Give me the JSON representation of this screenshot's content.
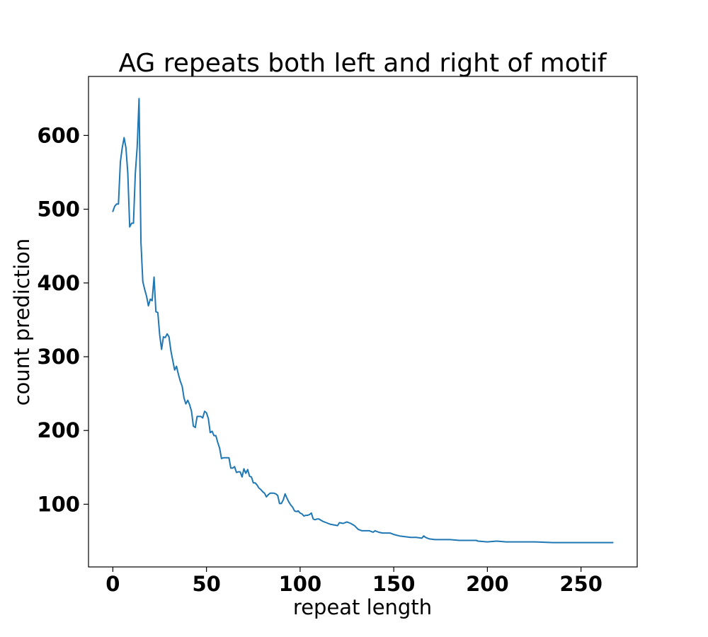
{
  "chart_data": {
    "type": "line",
    "title": "AG repeats both left and right of motif",
    "xlabel": "repeat length",
    "ylabel": "count prediction",
    "xlim": [
      -13,
      280
    ],
    "ylim": [
      15,
      680
    ],
    "x_ticks": [
      0,
      50,
      100,
      150,
      200,
      250
    ],
    "x_tick_labels": [
      "0",
      "50",
      "100",
      "150",
      "200",
      "250"
    ],
    "y_ticks": [
      100,
      200,
      300,
      400,
      500,
      600
    ],
    "y_tick_labels": [
      "100",
      "200",
      "300",
      "400",
      "500",
      "600"
    ],
    "grid": false,
    "series": [
      {
        "color": "#1f77b4",
        "points": [
          [
            0,
            497
          ],
          [
            1,
            504
          ],
          [
            2,
            507
          ],
          [
            3,
            507
          ],
          [
            4,
            564
          ],
          [
            5,
            583
          ],
          [
            6,
            597
          ],
          [
            7,
            583
          ],
          [
            8,
            549
          ],
          [
            9,
            476
          ],
          [
            10,
            481
          ],
          [
            11,
            481
          ],
          [
            12,
            548
          ],
          [
            13,
            585
          ],
          [
            14,
            650
          ],
          [
            15,
            455
          ],
          [
            16,
            402
          ],
          [
            17,
            391
          ],
          [
            18,
            382
          ],
          [
            19,
            369
          ],
          [
            20,
            378
          ],
          [
            21,
            376
          ],
          [
            22,
            408
          ],
          [
            23,
            361
          ],
          [
            24,
            360
          ],
          [
            25,
            330
          ],
          [
            26,
            310
          ],
          [
            27,
            327
          ],
          [
            28,
            326
          ],
          [
            29,
            331
          ],
          [
            30,
            327
          ],
          [
            31,
            308
          ],
          [
            32,
            295
          ],
          [
            33,
            282
          ],
          [
            34,
            287
          ],
          [
            35,
            276
          ],
          [
            36,
            267
          ],
          [
            37,
            260
          ],
          [
            38,
            244
          ],
          [
            39,
            236
          ],
          [
            40,
            241
          ],
          [
            41,
            235
          ],
          [
            42,
            226
          ],
          [
            43,
            206
          ],
          [
            44,
            204
          ],
          [
            45,
            219
          ],
          [
            46,
            219
          ],
          [
            47,
            219
          ],
          [
            48,
            217
          ],
          [
            49,
            226
          ],
          [
            50,
            224
          ],
          [
            51,
            216
          ],
          [
            52,
            197
          ],
          [
            53,
            199
          ],
          [
            54,
            193
          ],
          [
            55,
            193
          ],
          [
            56,
            184
          ],
          [
            57,
            176
          ],
          [
            58,
            162
          ],
          [
            59,
            163
          ],
          [
            60,
            163
          ],
          [
            61,
            163
          ],
          [
            62,
            163
          ],
          [
            63,
            149
          ],
          [
            64,
            149
          ],
          [
            65,
            151
          ],
          [
            66,
            143
          ],
          [
            67,
            144
          ],
          [
            68,
            144
          ],
          [
            69,
            137
          ],
          [
            70,
            148
          ],
          [
            71,
            142
          ],
          [
            72,
            147
          ],
          [
            73,
            138
          ],
          [
            74,
            137
          ],
          [
            75,
            129
          ],
          [
            76,
            129
          ],
          [
            77,
            126
          ],
          [
            78,
            122
          ],
          [
            79,
            120
          ],
          [
            80,
            117
          ],
          [
            81,
            115
          ],
          [
            82,
            110
          ],
          [
            83,
            113
          ],
          [
            84,
            115
          ],
          [
            85,
            115
          ],
          [
            86,
            115
          ],
          [
            87,
            114
          ],
          [
            88,
            112
          ],
          [
            89,
            101
          ],
          [
            90,
            101
          ],
          [
            91,
            106
          ],
          [
            92,
            114
          ],
          [
            93,
            108
          ],
          [
            94,
            103
          ],
          [
            95,
            99
          ],
          [
            96,
            96
          ],
          [
            97,
            91
          ],
          [
            98,
            90
          ],
          [
            99,
            91
          ],
          [
            100,
            88
          ],
          [
            101,
            87
          ],
          [
            102,
            84
          ],
          [
            103,
            85
          ],
          [
            104,
            85
          ],
          [
            105,
            86
          ],
          [
            106,
            88
          ],
          [
            107,
            80
          ],
          [
            108,
            79
          ],
          [
            109,
            80
          ],
          [
            110,
            80
          ],
          [
            112,
            77
          ],
          [
            114,
            75
          ],
          [
            116,
            73
          ],
          [
            118,
            72
          ],
          [
            120,
            71
          ],
          [
            121,
            75
          ],
          [
            123,
            74
          ],
          [
            125,
            76
          ],
          [
            127,
            74
          ],
          [
            129,
            71
          ],
          [
            131,
            66
          ],
          [
            133,
            64
          ],
          [
            135,
            64
          ],
          [
            137,
            64
          ],
          [
            139,
            62
          ],
          [
            140,
            64
          ],
          [
            142,
            62
          ],
          [
            144,
            61
          ],
          [
            146,
            61
          ],
          [
            148,
            61
          ],
          [
            150,
            59
          ],
          [
            153,
            57
          ],
          [
            156,
            56
          ],
          [
            159,
            55
          ],
          [
            162,
            55
          ],
          [
            165,
            54
          ],
          [
            166,
            57
          ],
          [
            167,
            55
          ],
          [
            169,
            53
          ],
          [
            172,
            52
          ],
          [
            176,
            52
          ],
          [
            180,
            52
          ],
          [
            185,
            51
          ],
          [
            190,
            51
          ],
          [
            194,
            51
          ],
          [
            195,
            50
          ],
          [
            200,
            49
          ],
          [
            205,
            50
          ],
          [
            210,
            49
          ],
          [
            215,
            49
          ],
          [
            225,
            49
          ],
          [
            235,
            48
          ],
          [
            245,
            48
          ],
          [
            255,
            48
          ],
          [
            267,
            48
          ]
        ]
      }
    ]
  }
}
